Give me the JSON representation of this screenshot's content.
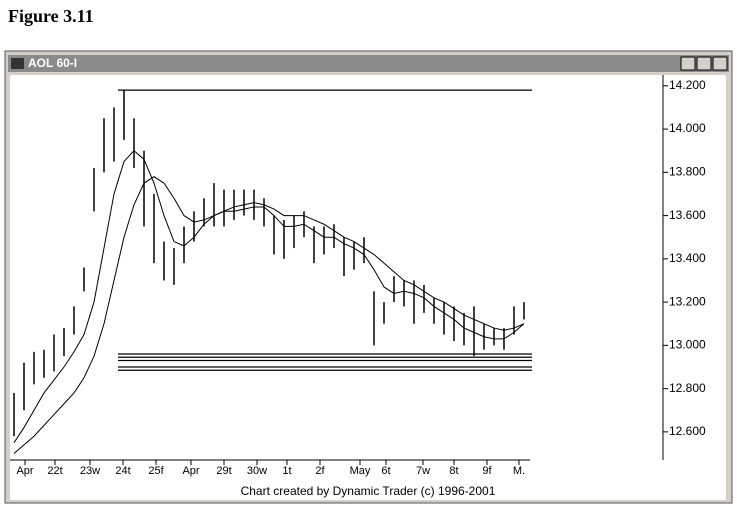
{
  "figure_label": "Figure 3.11",
  "chart_data": {
    "type": "range-bar",
    "title": "AOL 60-I",
    "credit": "Chart created by Dynamic Trader (c) 1996-2001",
    "x": [
      0,
      1,
      2,
      3,
      4,
      5,
      6,
      7,
      8,
      9,
      10,
      11,
      12,
      13,
      14,
      15,
      16,
      17,
      18,
      19,
      20,
      21,
      22,
      23,
      24,
      25,
      26,
      27,
      28,
      29,
      30,
      31,
      32,
      33,
      34,
      35,
      36,
      37,
      38,
      39,
      40,
      41,
      42,
      43,
      44,
      45,
      46,
      47,
      48,
      49,
      50,
      51
    ],
    "high": [
      12.78,
      12.92,
      12.97,
      12.98,
      13.05,
      13.08,
      13.18,
      13.36,
      13.82,
      14.05,
      14.1,
      14.18,
      14.05,
      13.9,
      13.7,
      13.48,
      13.45,
      13.55,
      13.62,
      13.68,
      13.75,
      13.72,
      13.72,
      13.72,
      13.72,
      13.68,
      13.6,
      13.58,
      13.6,
      13.62,
      13.55,
      13.55,
      13.56,
      13.5,
      13.48,
      13.5,
      13.25,
      13.2,
      13.32,
      13.3,
      13.3,
      13.28,
      13.22,
      13.2,
      13.18,
      13.15,
      13.18,
      13.1,
      13.08,
      13.08,
      13.18,
      13.2
    ],
    "low": [
      12.58,
      12.7,
      12.82,
      12.85,
      12.88,
      12.95,
      13.05,
      13.25,
      13.62,
      13.8,
      13.85,
      13.95,
      13.82,
      13.55,
      13.38,
      13.3,
      13.28,
      13.38,
      13.48,
      13.55,
      13.55,
      13.55,
      13.58,
      13.6,
      13.58,
      13.55,
      13.42,
      13.4,
      13.45,
      13.5,
      13.38,
      13.42,
      13.45,
      13.32,
      13.35,
      13.38,
      13.0,
      13.1,
      13.2,
      13.18,
      13.1,
      13.15,
      13.1,
      13.05,
      13.02,
      13.0,
      12.95,
      12.98,
      13.0,
      12.98,
      13.05,
      13.12
    ],
    "series": [
      {
        "color": "#000000",
        "values": [
          12.55,
          12.62,
          12.7,
          12.78,
          12.84,
          12.9,
          12.97,
          13.05,
          13.2,
          13.45,
          13.7,
          13.85,
          13.9,
          13.86,
          13.75,
          13.6,
          13.48,
          13.46,
          13.5,
          13.56,
          13.6,
          13.62,
          13.62,
          13.63,
          13.64,
          13.64,
          13.6,
          13.55,
          13.55,
          13.56,
          13.53,
          13.5,
          13.5,
          13.47,
          13.45,
          13.42,
          13.35,
          13.27,
          13.24,
          13.25,
          13.24,
          13.22,
          13.18,
          13.15,
          13.12,
          13.08,
          13.06,
          13.04,
          13.03,
          13.03,
          13.06,
          13.1
        ]
      },
      {
        "color": "#000000",
        "values": [
          12.5,
          12.54,
          12.58,
          12.63,
          12.68,
          12.73,
          12.78,
          12.85,
          12.95,
          13.1,
          13.3,
          13.5,
          13.65,
          13.75,
          13.78,
          13.75,
          13.68,
          13.6,
          13.57,
          13.58,
          13.6,
          13.62,
          13.64,
          13.65,
          13.66,
          13.65,
          13.63,
          13.6,
          13.6,
          13.6,
          13.58,
          13.56,
          13.53,
          13.5,
          13.48,
          13.45,
          13.42,
          13.38,
          13.34,
          13.3,
          13.28,
          13.25,
          13.22,
          13.2,
          13.17,
          13.14,
          13.12,
          13.1,
          13.08,
          13.07,
          13.08,
          13.1
        ]
      }
    ],
    "levels": [
      14.18,
      12.96,
      12.945,
      12.93,
      12.9,
      12.885
    ],
    "xlim": [
      -0.4,
      64.9
    ],
    "ylim": [
      12.47,
      14.25
    ],
    "xticks": [
      {
        "value": 1.1,
        "label": "Apr"
      },
      {
        "value": 4.1,
        "label": "22t"
      },
      {
        "value": 7.6,
        "label": "23w"
      },
      {
        "value": 10.9,
        "label": "24t"
      },
      {
        "value": 14.2,
        "label": "25f"
      },
      {
        "value": 17.7,
        "label": "Apr"
      },
      {
        "value": 21,
        "label": "29t"
      },
      {
        "value": 24.3,
        "label": "30w"
      },
      {
        "value": 27.3,
        "label": "1t"
      },
      {
        "value": 30.6,
        "label": "2f"
      },
      {
        "value": 34.6,
        "label": "May"
      },
      {
        "value": 37.2,
        "label": "6t"
      },
      {
        "value": 40.9,
        "label": "7w"
      },
      {
        "value": 44,
        "label": "8t"
      },
      {
        "value": 47.3,
        "label": "9f"
      },
      {
        "value": 50.5,
        "label": "M."
      }
    ],
    "yticks": [
      {
        "value": 12.6,
        "label": "12.600"
      },
      {
        "value": 12.8,
        "label": "12.800"
      },
      {
        "value": 13,
        "label": "13.000"
      },
      {
        "value": 13.2,
        "label": "13.200"
      },
      {
        "value": 13.4,
        "label": "13.400"
      },
      {
        "value": 13.6,
        "label": "13.600"
      },
      {
        "value": 13.8,
        "label": "13.800"
      },
      {
        "value": 14,
        "label": "14.000"
      },
      {
        "value": 14.2,
        "label": "14.200"
      }
    ]
  }
}
